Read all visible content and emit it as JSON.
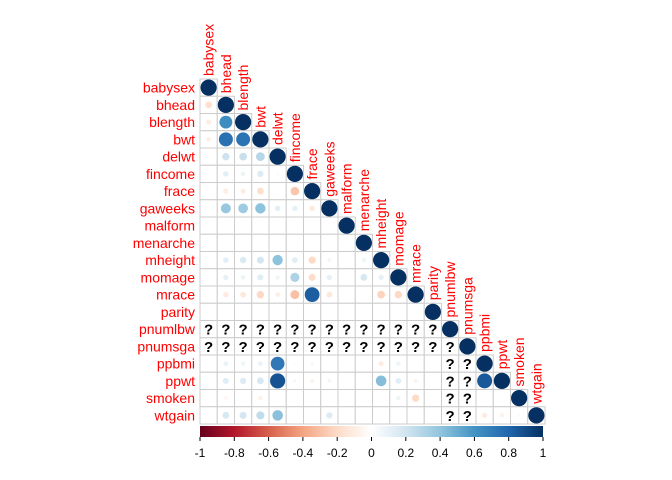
{
  "chart_data": {
    "type": "heatmap",
    "method": "circle",
    "layout": "lower",
    "variables": [
      "babysex",
      "bhead",
      "blength",
      "bwt",
      "delwt",
      "fincome",
      "frace",
      "gaweeks",
      "malform",
      "menarche",
      "mheight",
      "momage",
      "mrace",
      "parity",
      "pnumlbw",
      "pnumsga",
      "ppbmi",
      "ppwt",
      "smoken",
      "wtgain"
    ],
    "na_label": "?",
    "na_variables": [
      "pnumlbw",
      "pnumsga"
    ],
    "correlations": [
      {
        "row": "bhead",
        "col": "babysex",
        "value": -0.17
      },
      {
        "row": "blength",
        "col": "babysex",
        "value": -0.1
      },
      {
        "row": "blength",
        "col": "bhead",
        "value": 0.63
      },
      {
        "row": "bwt",
        "col": "babysex",
        "value": -0.09
      },
      {
        "row": "bwt",
        "col": "bhead",
        "value": 0.75
      },
      {
        "row": "bwt",
        "col": "blength",
        "value": 0.74
      },
      {
        "row": "delwt",
        "col": "bhead",
        "value": 0.21
      },
      {
        "row": "delwt",
        "col": "blength",
        "value": 0.23
      },
      {
        "row": "delwt",
        "col": "bwt",
        "value": 0.29
      },
      {
        "row": "fincome",
        "col": "bhead",
        "value": 0.12
      },
      {
        "row": "fincome",
        "col": "blength",
        "value": 0.08
      },
      {
        "row": "fincome",
        "col": "bwt",
        "value": 0.15
      },
      {
        "row": "fincome",
        "col": "delwt",
        "value": 0.03
      },
      {
        "row": "frace",
        "col": "bhead",
        "value": -0.1
      },
      {
        "row": "frace",
        "col": "blength",
        "value": -0.1
      },
      {
        "row": "frace",
        "col": "bwt",
        "value": -0.18
      },
      {
        "row": "frace",
        "col": "fincome",
        "value": -0.28
      },
      {
        "row": "gaweeks",
        "col": "bhead",
        "value": 0.38
      },
      {
        "row": "gaweeks",
        "col": "blength",
        "value": 0.36
      },
      {
        "row": "gaweeks",
        "col": "bwt",
        "value": 0.41
      },
      {
        "row": "gaweeks",
        "col": "delwt",
        "value": 0.12
      },
      {
        "row": "gaweeks",
        "col": "fincome",
        "value": 0.11
      },
      {
        "row": "gaweeks",
        "col": "frace",
        "value": -0.12
      },
      {
        "row": "menarche",
        "col": "mheight",
        "value": 0.07
      },
      {
        "row": "mheight",
        "col": "bhead",
        "value": 0.12
      },
      {
        "row": "mheight",
        "col": "blength",
        "value": 0.16
      },
      {
        "row": "mheight",
        "col": "bwt",
        "value": 0.19
      },
      {
        "row": "mheight",
        "col": "delwt",
        "value": 0.41
      },
      {
        "row": "mheight",
        "col": "fincome",
        "value": 0.13
      },
      {
        "row": "mheight",
        "col": "frace",
        "value": -0.2
      },
      {
        "row": "mheight",
        "col": "gaweeks",
        "value": 0.06
      },
      {
        "row": "mheight",
        "col": "menarche",
        "value": 0.07
      },
      {
        "row": "momage",
        "col": "bhead",
        "value": 0.11
      },
      {
        "row": "momage",
        "col": "blength",
        "value": 0.08
      },
      {
        "row": "momage",
        "col": "bwt",
        "value": 0.14
      },
      {
        "row": "momage",
        "col": "delwt",
        "value": 0.07
      },
      {
        "row": "momage",
        "col": "fincome",
        "value": 0.32
      },
      {
        "row": "momage",
        "col": "frace",
        "value": -0.19
      },
      {
        "row": "momage",
        "col": "gaweeks",
        "value": 0.11
      },
      {
        "row": "momage",
        "col": "menarche",
        "value": 0.18
      },
      {
        "row": "momage",
        "col": "mheight",
        "value": 0.11
      },
      {
        "row": "mrace",
        "col": "bhead",
        "value": -0.11
      },
      {
        "row": "mrace",
        "col": "blength",
        "value": -0.13
      },
      {
        "row": "mrace",
        "col": "bwt",
        "value": -0.21
      },
      {
        "row": "mrace",
        "col": "delwt",
        "value": -0.09
      },
      {
        "row": "mrace",
        "col": "fincome",
        "value": -0.3
      },
      {
        "row": "mrace",
        "col": "frace",
        "value": 0.83
      },
      {
        "row": "mrace",
        "col": "gaweeks",
        "value": -0.13
      },
      {
        "row": "mrace",
        "col": "mheight",
        "value": -0.23
      },
      {
        "row": "mrace",
        "col": "momage",
        "value": -0.21
      },
      {
        "row": "pnumlbw",
        "col": "babysex",
        "value": null
      },
      {
        "row": "pnumlbw",
        "col": "bhead",
        "value": null
      },
      {
        "row": "pnumlbw",
        "col": "blength",
        "value": null
      },
      {
        "row": "pnumlbw",
        "col": "bwt",
        "value": null
      },
      {
        "row": "pnumlbw",
        "col": "delwt",
        "value": null
      },
      {
        "row": "pnumlbw",
        "col": "fincome",
        "value": null
      },
      {
        "row": "pnumlbw",
        "col": "frace",
        "value": null
      },
      {
        "row": "pnumlbw",
        "col": "gaweeks",
        "value": null
      },
      {
        "row": "pnumlbw",
        "col": "malform",
        "value": null
      },
      {
        "row": "pnumlbw",
        "col": "menarche",
        "value": null
      },
      {
        "row": "pnumlbw",
        "col": "mheight",
        "value": null
      },
      {
        "row": "pnumlbw",
        "col": "momage",
        "value": null
      },
      {
        "row": "pnumlbw",
        "col": "mrace",
        "value": null
      },
      {
        "row": "pnumlbw",
        "col": "parity",
        "value": null
      },
      {
        "row": "pnumsga",
        "col": "babysex",
        "value": null
      },
      {
        "row": "pnumsga",
        "col": "bhead",
        "value": null
      },
      {
        "row": "pnumsga",
        "col": "blength",
        "value": null
      },
      {
        "row": "pnumsga",
        "col": "bwt",
        "value": null
      },
      {
        "row": "pnumsga",
        "col": "delwt",
        "value": null
      },
      {
        "row": "pnumsga",
        "col": "fincome",
        "value": null
      },
      {
        "row": "pnumsga",
        "col": "frace",
        "value": null
      },
      {
        "row": "pnumsga",
        "col": "gaweeks",
        "value": null
      },
      {
        "row": "pnumsga",
        "col": "malform",
        "value": null
      },
      {
        "row": "pnumsga",
        "col": "menarche",
        "value": null
      },
      {
        "row": "pnumsga",
        "col": "mheight",
        "value": null
      },
      {
        "row": "pnumsga",
        "col": "momage",
        "value": null
      },
      {
        "row": "pnumsga",
        "col": "mrace",
        "value": null
      },
      {
        "row": "pnumsga",
        "col": "parity",
        "value": null
      },
      {
        "row": "pnumsga",
        "col": "pnumlbw",
        "value": null
      },
      {
        "row": "ppbmi",
        "col": "bhead",
        "value": 0.09
      },
      {
        "row": "ppbmi",
        "col": "blength",
        "value": 0.07
      },
      {
        "row": "ppbmi",
        "col": "bwt",
        "value": 0.09
      },
      {
        "row": "ppbmi",
        "col": "delwt",
        "value": 0.72
      },
      {
        "row": "ppbmi",
        "col": "fincome",
        "value": -0.02
      },
      {
        "row": "ppbmi",
        "col": "frace",
        "value": 0.05
      },
      {
        "row": "ppbmi",
        "col": "mheight",
        "value": -0.1
      },
      {
        "row": "ppbmi",
        "col": "momage",
        "value": 0.08
      },
      {
        "row": "ppbmi",
        "col": "pnumlbw",
        "value": null
      },
      {
        "row": "ppbmi",
        "col": "pnumsga",
        "value": null
      },
      {
        "row": "ppwt",
        "col": "bhead",
        "value": 0.14
      },
      {
        "row": "ppwt",
        "col": "blength",
        "value": 0.15
      },
      {
        "row": "ppwt",
        "col": "bwt",
        "value": 0.18
      },
      {
        "row": "ppwt",
        "col": "delwt",
        "value": 0.87
      },
      {
        "row": "ppwt",
        "col": "fincome",
        "value": 0.05
      },
      {
        "row": "ppwt",
        "col": "frace",
        "value": -0.06
      },
      {
        "row": "ppwt",
        "col": "gaweeks",
        "value": 0.06
      },
      {
        "row": "ppwt",
        "col": "mheight",
        "value": 0.43
      },
      {
        "row": "ppwt",
        "col": "momage",
        "value": 0.13
      },
      {
        "row": "ppwt",
        "col": "mrace",
        "value": -0.06
      },
      {
        "row": "ppwt",
        "col": "pnumlbw",
        "value": null
      },
      {
        "row": "ppwt",
        "col": "pnumsga",
        "value": null
      },
      {
        "row": "ppwt",
        "col": "ppbmi",
        "value": 0.85
      },
      {
        "row": "smoken",
        "col": "bhead",
        "value": -0.05
      },
      {
        "row": "smoken",
        "col": "bwt",
        "value": -0.08
      },
      {
        "row": "smoken",
        "col": "momage",
        "value": 0.08
      },
      {
        "row": "smoken",
        "col": "mrace",
        "value": -0.2
      },
      {
        "row": "smoken",
        "col": "pnumlbw",
        "value": null
      },
      {
        "row": "smoken",
        "col": "pnumsga",
        "value": null
      },
      {
        "row": "wtgain",
        "col": "bhead",
        "value": 0.18
      },
      {
        "row": "wtgain",
        "col": "blength",
        "value": 0.19
      },
      {
        "row": "wtgain",
        "col": "bwt",
        "value": 0.25
      },
      {
        "row": "wtgain",
        "col": "delwt",
        "value": 0.42
      },
      {
        "row": "wtgain",
        "col": "gaweeks",
        "value": 0.15
      },
      {
        "row": "wtgain",
        "col": "pnumlbw",
        "value": null
      },
      {
        "row": "wtgain",
        "col": "pnumsga",
        "value": null
      },
      {
        "row": "wtgain",
        "col": "ppbmi",
        "value": -0.11
      },
      {
        "row": "wtgain",
        "col": "ppwt",
        "value": -0.07
      },
      {
        "row": "wtgain",
        "col": "smoken",
        "value": 0.03
      }
    ],
    "colorbar": {
      "range": [
        -1,
        1
      ],
      "ticks": [
        "-1",
        "-0.8",
        "-0.6",
        "-0.4",
        "-0.2",
        "0",
        "0.2",
        "0.4",
        "0.6",
        "0.8",
        "1"
      ],
      "colors": [
        "#67001F",
        "#B2182B",
        "#D6604D",
        "#F4A582",
        "#FDDBC7",
        "#FFFFFF",
        "#D1E5F0",
        "#92C5DE",
        "#4393C3",
        "#2166AC",
        "#053061"
      ]
    },
    "label_color": "#FF0000",
    "grid": true
  }
}
